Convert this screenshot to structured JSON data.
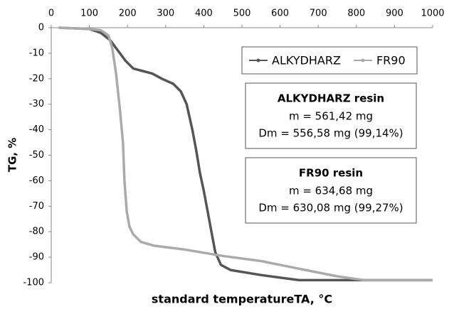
{
  "chart_data": {
    "type": "line",
    "x_label": "standard temperatureTA, °C",
    "y_label": "TG, %",
    "xlim": [
      0,
      1000
    ],
    "xticks": [
      0,
      100,
      200,
      300,
      400,
      500,
      600,
      700,
      800,
      900,
      1000
    ],
    "ylim": [
      -100,
      0
    ],
    "yticks": [
      -100,
      -90,
      -80,
      -70,
      -60,
      -50,
      -40,
      -30,
      -20,
      -10,
      0
    ],
    "grid": false,
    "series": [
      {
        "name": "ALKYDHARZ",
        "color": "#555555",
        "x": [
          20,
          100,
          130,
          155,
          175,
          195,
          215,
          240,
          265,
          290,
          320,
          340,
          355,
          370,
          380,
          390,
          400,
          410,
          420,
          430,
          445,
          470,
          550,
          650,
          1000
        ],
        "values": [
          0,
          -0.5,
          -2,
          -5,
          -9,
          -13,
          -16,
          -17,
          -18,
          -20,
          -22,
          -25,
          -30,
          -40,
          -48,
          -57,
          -64,
          -72,
          -80,
          -88,
          -93,
          -95,
          -97,
          -99,
          -99
        ]
      },
      {
        "name": "FR90",
        "color": "#aaaaaa",
        "x": [
          20,
          100,
          130,
          150,
          160,
          170,
          180,
          188,
          192,
          198,
          205,
          215,
          235,
          270,
          350,
          450,
          550,
          650,
          750,
          820,
          1000
        ],
        "values": [
          0,
          -0.5,
          -1,
          -3,
          -8,
          -18,
          -32,
          -45,
          -60,
          -72,
          -78,
          -81,
          -84,
          -85.5,
          -87,
          -89.5,
          -91.5,
          -94.5,
          -97.5,
          -99,
          -99
        ]
      }
    ],
    "annotations": [
      {
        "title": "ALKYDHARZ resin",
        "lines": [
          "m = 561,42 mg",
          "Dm = 556,58 mg (99,14%)"
        ]
      },
      {
        "title": "FR90 resin",
        "lines": [
          "m = 634,68 mg",
          "Dm = 630,08 mg (99,27%)"
        ]
      }
    ]
  }
}
